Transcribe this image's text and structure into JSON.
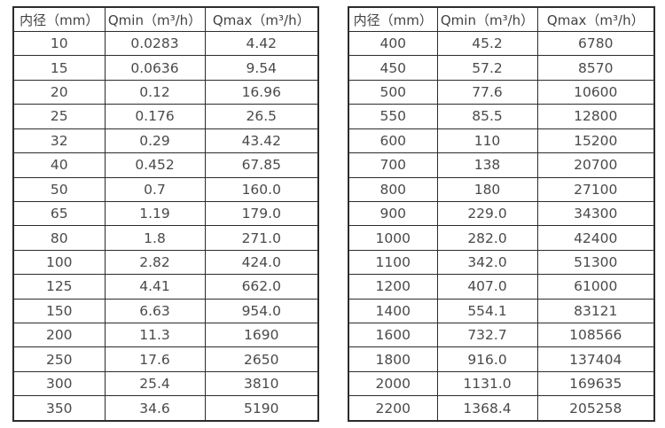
{
  "page": {
    "background": "#ffffff",
    "text_color": "#4a4a4a",
    "border_color": "#2c2c2c"
  },
  "tables": [
    {
      "id": "small-diameters",
      "headers": [
        "内径（mm）",
        "Qmin（m³/h）",
        "Qmax（m³/h）"
      ],
      "rows": [
        [
          "10",
          "0.0283",
          "4.42"
        ],
        [
          "15",
          "0.0636",
          "9.54"
        ],
        [
          "20",
          "0.12",
          "16.96"
        ],
        [
          "25",
          "0.176",
          "26.5"
        ],
        [
          "32",
          "0.29",
          "43.42"
        ],
        [
          "40",
          "0.452",
          "67.85"
        ],
        [
          "50",
          "0.7",
          "160.0"
        ],
        [
          "65",
          "1.19",
          "179.0"
        ],
        [
          "80",
          "1.8",
          "271.0"
        ],
        [
          "100",
          "2.82",
          "424.0"
        ],
        [
          "125",
          "4.41",
          "662.0"
        ],
        [
          "150",
          "6.63",
          "954.0"
        ],
        [
          "200",
          "11.3",
          "1690"
        ],
        [
          "250",
          "17.6",
          "2650"
        ],
        [
          "300",
          "25.4",
          "3810"
        ],
        [
          "350",
          "34.6",
          "5190"
        ]
      ]
    },
    {
      "id": "large-diameters",
      "headers": [
        "内径（mm）",
        "Qmin（m³/h）",
        "Qmax（m³/h）"
      ],
      "rows": [
        [
          "400",
          "45.2",
          "6780"
        ],
        [
          "450",
          "57.2",
          "8570"
        ],
        [
          "500",
          "77.6",
          "10600"
        ],
        [
          "550",
          "85.5",
          "12800"
        ],
        [
          "600",
          "110",
          "15200"
        ],
        [
          "700",
          "138",
          "20700"
        ],
        [
          "800",
          "180",
          "27100"
        ],
        [
          "900",
          "229.0",
          "34300"
        ],
        [
          "1000",
          "282.0",
          "42400"
        ],
        [
          "1100",
          "342.0",
          "51300"
        ],
        [
          "1200",
          "407.0",
          "61000"
        ],
        [
          "1400",
          "554.1",
          "83121"
        ],
        [
          "1600",
          "732.7",
          "108566"
        ],
        [
          "1800",
          "916.0",
          "137404"
        ],
        [
          "2000",
          "1131.0",
          "169635"
        ],
        [
          "2200",
          "1368.4",
          "205258"
        ]
      ]
    }
  ]
}
